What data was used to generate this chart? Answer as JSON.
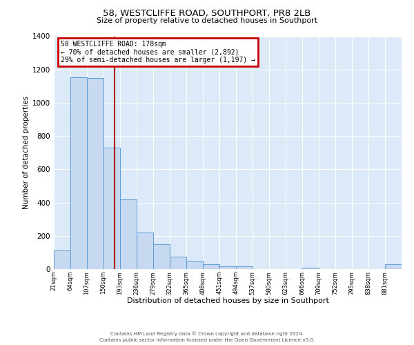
{
  "title1": "58, WESTCLIFFE ROAD, SOUTHPORT, PR8 2LB",
  "title2": "Size of property relative to detached houses in Southport",
  "xlabel": "Distribution of detached houses by size in Southport",
  "ylabel": "Number of detached properties",
  "bin_labels": [
    "21sqm",
    "64sqm",
    "107sqm",
    "150sqm",
    "193sqm",
    "236sqm",
    "279sqm",
    "322sqm",
    "365sqm",
    "408sqm",
    "451sqm",
    "494sqm",
    "537sqm",
    "580sqm",
    "623sqm",
    "666sqm",
    "709sqm",
    "752sqm",
    "795sqm",
    "838sqm",
    "881sqm"
  ],
  "bar_heights": [
    110,
    1155,
    1150,
    730,
    420,
    220,
    150,
    75,
    50,
    30,
    15,
    15,
    0,
    0,
    0,
    10,
    0,
    0,
    0,
    0,
    30
  ],
  "bar_color": "#c6d9f0",
  "bar_edge_color": "#5b9bd5",
  "bg_color": "#dce9f8",
  "annotation_line1": "58 WESTCLIFFE ROAD: 178sqm",
  "annotation_line2": "← 70% of detached houses are smaller (2,892)",
  "annotation_line3": "29% of semi-detached houses are larger (1,197) →",
  "annotation_box_edgecolor": "#cc0000",
  "vline_color": "#aa0000",
  "vline_x": 178,
  "ylim": [
    0,
    1400
  ],
  "yticks": [
    0,
    200,
    400,
    600,
    800,
    1000,
    1200,
    1400
  ],
  "footer1": "Contains HM Land Registry data © Crown copyright and database right 2024.",
  "footer2": "Contains public sector information licensed under the Open Government Licence v3.0.",
  "bin_edges": [
    21,
    64,
    107,
    150,
    193,
    236,
    279,
    322,
    365,
    408,
    451,
    494,
    537,
    580,
    623,
    666,
    709,
    752,
    795,
    838,
    881,
    924
  ]
}
